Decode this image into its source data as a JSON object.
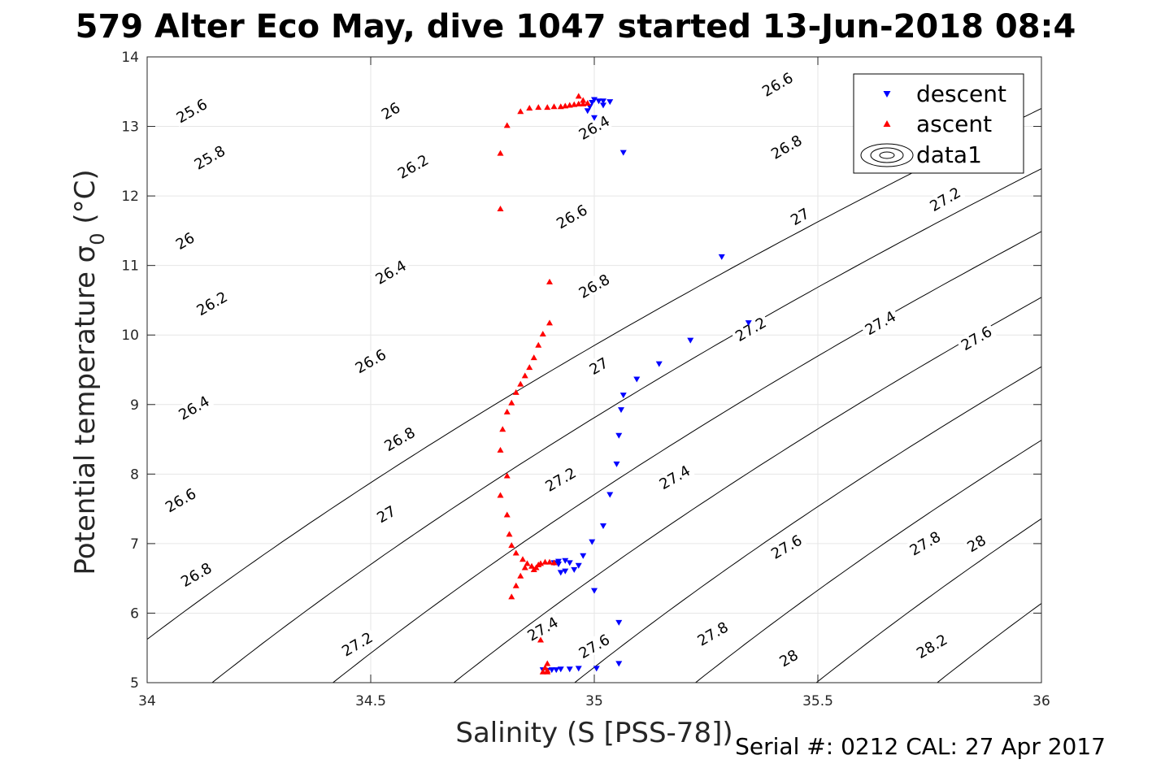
{
  "title": "579 Alter Eco May, dive 1047 started 13-Jun-2018 08:4",
  "footer": "Serial #: 0212  CAL: 27 Apr 2017",
  "colors": {
    "descent": "#0000ff",
    "ascent": "#ff0000",
    "contour": "#000000",
    "grid": "#e6e6e6"
  },
  "chart_data": {
    "type": "scatter",
    "xlabel": "Salinity (S [PSS-78])",
    "ylabel": "Potential temperature σ",
    "ylabel_sub": "0",
    "ylabel_unit": " (°C)",
    "xlim": [
      34,
      36
    ],
    "ylim": [
      5,
      14
    ],
    "x_ticks": [
      "34",
      "34.5",
      "35",
      "35.5",
      "36"
    ],
    "y_ticks": [
      "5",
      "6",
      "7",
      "8",
      "9",
      "10",
      "11",
      "12",
      "13",
      "14"
    ],
    "grid": true,
    "legend_position": "top-right",
    "legend": [
      "descent",
      "ascent",
      "data1"
    ],
    "series": [
      {
        "name": "descent",
        "marker": "triangle-down",
        "points": [
          [
            34.995,
            13.34
          ],
          [
            34.99,
            13.28
          ],
          [
            34.985,
            13.22
          ],
          [
            35.0,
            13.38
          ],
          [
            35.01,
            13.36
          ],
          [
            35.02,
            13.36
          ],
          [
            35.035,
            13.35
          ],
          [
            35.02,
            13.3
          ],
          [
            35.0,
            13.12
          ],
          [
            35.065,
            12.62
          ],
          [
            35.285,
            11.12
          ],
          [
            35.345,
            10.17
          ],
          [
            35.215,
            9.92
          ],
          [
            35.145,
            9.58
          ],
          [
            35.095,
            9.36
          ],
          [
            35.065,
            9.13
          ],
          [
            35.06,
            8.92
          ],
          [
            35.055,
            8.55
          ],
          [
            35.05,
            8.14
          ],
          [
            35.035,
            7.7
          ],
          [
            35.02,
            7.25
          ],
          [
            34.995,
            7.02
          ],
          [
            34.975,
            6.82
          ],
          [
            34.965,
            6.68
          ],
          [
            34.955,
            6.62
          ],
          [
            34.945,
            6.72
          ],
          [
            34.935,
            6.6
          ],
          [
            34.925,
            6.58
          ],
          [
            34.935,
            6.75
          ],
          [
            34.92,
            6.7
          ],
          [
            34.92,
            6.74
          ],
          [
            34.91,
            6.72
          ],
          [
            35.0,
            6.32
          ],
          [
            35.055,
            5.86
          ],
          [
            35.055,
            5.27
          ],
          [
            35.005,
            5.2
          ],
          [
            34.965,
            5.2
          ],
          [
            34.945,
            5.19
          ],
          [
            34.925,
            5.19
          ],
          [
            34.915,
            5.18
          ],
          [
            34.905,
            5.18
          ],
          [
            34.895,
            5.17
          ],
          [
            34.885,
            5.18
          ]
        ]
      },
      {
        "name": "ascent",
        "marker": "triangle-up",
        "points": [
          [
            34.79,
            11.82
          ],
          [
            34.79,
            12.62
          ],
          [
            34.805,
            13.02
          ],
          [
            34.835,
            13.22
          ],
          [
            34.855,
            13.27
          ],
          [
            34.875,
            13.28
          ],
          [
            34.895,
            13.28
          ],
          [
            34.91,
            13.29
          ],
          [
            34.925,
            13.29
          ],
          [
            34.935,
            13.3
          ],
          [
            34.945,
            13.31
          ],
          [
            34.955,
            13.32
          ],
          [
            34.965,
            13.33
          ],
          [
            34.975,
            13.33
          ],
          [
            34.985,
            13.34
          ],
          [
            34.965,
            13.44
          ],
          [
            34.975,
            13.38
          ],
          [
            34.9,
            10.77
          ],
          [
            34.9,
            10.18
          ],
          [
            34.885,
            10.02
          ],
          [
            34.875,
            9.86
          ],
          [
            34.865,
            9.68
          ],
          [
            34.855,
            9.54
          ],
          [
            34.845,
            9.42
          ],
          [
            34.835,
            9.3
          ],
          [
            34.825,
            9.18
          ],
          [
            34.815,
            9.03
          ],
          [
            34.805,
            8.9
          ],
          [
            34.795,
            8.65
          ],
          [
            34.79,
            8.35
          ],
          [
            34.805,
            7.98
          ],
          [
            34.79,
            7.7
          ],
          [
            34.805,
            7.42
          ],
          [
            34.81,
            7.14
          ],
          [
            34.815,
            6.98
          ],
          [
            34.825,
            6.87
          ],
          [
            34.84,
            6.78
          ],
          [
            34.85,
            6.72
          ],
          [
            34.86,
            6.68
          ],
          [
            34.87,
            6.66
          ],
          [
            34.875,
            6.7
          ],
          [
            34.88,
            6.72
          ],
          [
            34.89,
            6.74
          ],
          [
            34.9,
            6.74
          ],
          [
            34.91,
            6.73
          ],
          [
            34.865,
            6.63
          ],
          [
            34.845,
            6.66
          ],
          [
            34.835,
            6.54
          ],
          [
            34.825,
            6.4
          ],
          [
            34.815,
            6.24
          ],
          [
            34.88,
            5.62
          ],
          [
            34.895,
            5.28
          ],
          [
            34.89,
            5.22
          ],
          [
            34.895,
            5.18
          ],
          [
            34.885,
            5.16
          ],
          [
            34.895,
            5.16
          ]
        ]
      }
    ],
    "contour_levels": [
      {
        "label": "25.6",
        "label_at": [
          34.1,
          13.22
        ]
      },
      {
        "label": "25.8",
        "label_at": [
          34.14,
          12.55
        ]
      },
      {
        "label": "26",
        "label_at": [
          34.085,
          11.35
        ],
        "label2": "26",
        "label2_at": [
          34.545,
          13.22
        ]
      },
      {
        "label": "26.2",
        "label_at": [
          34.145,
          10.45
        ],
        "label2": "26.2",
        "label2_at": [
          34.595,
          12.42
        ]
      },
      {
        "label": "26.4",
        "label_at": [
          34.105,
          8.95
        ],
        "label2": "26.4",
        "label2_at": [
          34.545,
          10.9
        ],
        "label3": "26.4",
        "label3_at": [
          35.0,
          12.98
        ]
      },
      {
        "label": "26.6",
        "label_at": [
          34.075,
          7.62
        ],
        "label2": "26.6",
        "label2_at": [
          34.5,
          9.62
        ],
        "label3": "26.6",
        "label3_at": [
          34.95,
          11.7
        ],
        "label4": "26.6",
        "label4_at": [
          35.41,
          13.6
        ]
      },
      {
        "label": "26.8",
        "label_at": [
          34.11,
          6.55
        ],
        "label2": "26.8",
        "label2_at": [
          34.565,
          8.5
        ],
        "label3": "26.8",
        "label3_at": [
          35.0,
          10.7
        ],
        "label4": "26.8",
        "label4_at": [
          35.43,
          12.7
        ]
      },
      {
        "label": "27",
        "label_at": [
          34.535,
          7.42
        ],
        "label2": "27",
        "label2_at": [
          35.01,
          9.55
        ],
        "label3": "27",
        "label3_at": [
          35.46,
          11.7
        ]
      },
      {
        "label": "27.2",
        "label_at": [
          34.47,
          5.55
        ],
        "label2": "27.2",
        "label2_at": [
          34.925,
          7.92
        ],
        "label3": "27.2",
        "label3_at": [
          35.35,
          10.08
        ],
        "label4": "27.2",
        "label4_at": [
          35.785,
          11.95
        ]
      },
      {
        "label": "27.4",
        "label_at": [
          34.885,
          5.77
        ],
        "label2": "27.4",
        "label2_at": [
          35.18,
          7.95
        ],
        "label3": "27.4",
        "label3_at": [
          35.64,
          10.17
        ]
      },
      {
        "label": "27.6",
        "label_at": [
          35.0,
          5.52
        ],
        "label2": "27.6",
        "label2_at": [
          35.43,
          6.95
        ],
        "label3": "27.6",
        "label3_at": [
          35.855,
          9.95
        ]
      },
      {
        "label": "27.8",
        "label_at": [
          35.265,
          5.7
        ],
        "label2": "27.8",
        "label2_at": [
          35.74,
          7.0
        ]
      },
      {
        "label": "28",
        "label_at": [
          35.435,
          5.35
        ],
        "label2": "28",
        "label2_at": [
          35.855,
          7.0
        ]
      },
      {
        "label": "28.2",
        "label_at": [
          35.755,
          5.52
        ]
      }
    ]
  }
}
